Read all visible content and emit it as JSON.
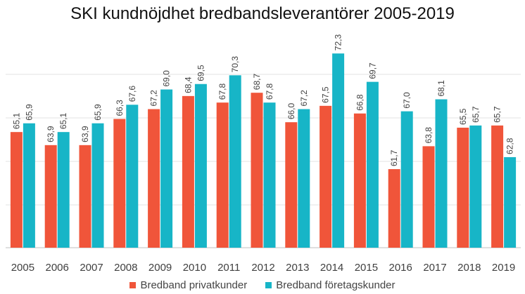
{
  "chart_data": {
    "type": "bar",
    "title": "SKI kundnöjdhet bredbandsleverantörer 2005-2019",
    "categories": [
      "2005",
      "2006",
      "2007",
      "2008",
      "2009",
      "2010",
      "2011",
      "2012",
      "2013",
      "2014",
      "2015",
      "2016",
      "2017",
      "2018",
      "2019"
    ],
    "series": [
      {
        "name": "Bredband privatkunder",
        "color": "#f0553a",
        "values": [
          65.1,
          63.9,
          63.9,
          66.3,
          67.2,
          68.4,
          67.8,
          68.7,
          66.0,
          67.5,
          66.8,
          61.7,
          63.8,
          65.5,
          65.7
        ],
        "labels": [
          "65,1",
          "63,9",
          "63,9",
          "66,3",
          "67,2",
          "68,4",
          "67,8",
          "68,7",
          "66,0",
          "67,5",
          "66,8",
          "61,7",
          "63,8",
          "65,5",
          "65,7"
        ]
      },
      {
        "name": "Bredband företagskunder",
        "color": "#17b5c7",
        "values": [
          65.9,
          65.1,
          65.9,
          67.6,
          69.0,
          69.5,
          70.3,
          67.8,
          67.2,
          72.3,
          69.7,
          67.0,
          68.1,
          65.7,
          62.8
        ],
        "labels": [
          "65,9",
          "65,1",
          "65,9",
          "67,6",
          "69,0",
          "69,5",
          "70,3",
          "67,8",
          "67,2",
          "72,3",
          "69,7",
          "67,0",
          "68,1",
          "65,7",
          "62,8"
        ]
      }
    ],
    "ylim": [
      54.5,
      74.5
    ],
    "grid": true,
    "legend_position": "bottom"
  }
}
